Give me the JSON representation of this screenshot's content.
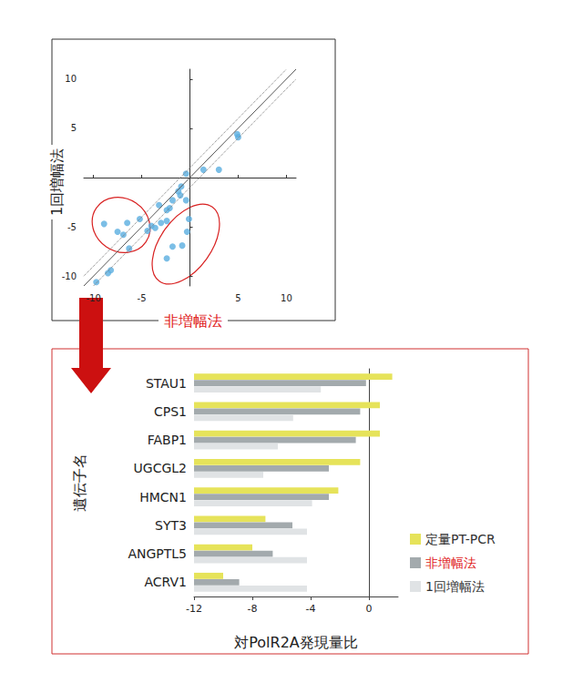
{
  "chart_data": [
    {
      "type": "scatter",
      "x_label": "非増幅法",
      "y_label": "1回増幅法",
      "x": [
        4.9,
        5.0,
        3.0,
        1.4,
        -0.4,
        -0.9,
        -1.2,
        -0.4,
        -1.8,
        -1.0,
        -2.1,
        -2.4,
        -3.2,
        -3.0,
        -2.4,
        -3.6,
        -4.4,
        -4.0,
        -5.2,
        -6.5,
        -7.5,
        -6.9,
        -8.9,
        -6.3,
        -8.2,
        -8.5,
        -9.7,
        -0.1,
        -0.3,
        -1.8,
        -2.4,
        -0.8
      ],
      "values": [
        4.4,
        4.1,
        0.8,
        0.8,
        0.4,
        -0.9,
        -1.4,
        -2.3,
        -2.3,
        -1.8,
        -3.1,
        -3.3,
        -2.8,
        -4.6,
        -4.4,
        -5.1,
        -5.4,
        -4.9,
        -4.2,
        -4.6,
        -5.5,
        -5.8,
        -4.7,
        -7.2,
        -9.4,
        -9.7,
        -10.6,
        -4.2,
        -5.5,
        -7.0,
        -8.2,
        -6.9
      ],
      "color": "#5aaee0",
      "xlim": [
        -11,
        11
      ],
      "ylim": [
        -11,
        11
      ],
      "xticks": [
        -10,
        -5,
        5,
        10
      ],
      "yticks": [
        -10,
        -5,
        5,
        10
      ],
      "diagonal_offset": 1,
      "grid": false
    },
    {
      "type": "bar",
      "orientation": "horizontal",
      "x_label": "対PolR2A発現量比",
      "y_label": "遺伝子名",
      "categories": [
        "STAU1",
        "CPS1",
        "FABP1",
        "UGCGL2",
        "HMCN1",
        "SYT3",
        "ANGPTL5",
        "ACRV1"
      ],
      "series": [
        {
          "name": "定量PT-PCR",
          "color": "#e6e35a",
          "values": [
            1.6,
            0.75,
            0.75,
            -0.6,
            -2.1,
            -7.1,
            -8.0,
            -10.0
          ]
        },
        {
          "name": "非増幅法",
          "color": "#a3aaad",
          "values": [
            -0.2,
            -0.6,
            -0.9,
            -2.75,
            -2.75,
            -5.25,
            -6.6,
            -8.9
          ]
        },
        {
          "name": "1回増幅法",
          "color": "#e0e3e5",
          "values": [
            -3.3,
            -5.2,
            -6.25,
            -7.25,
            -3.9,
            -4.25,
            -4.25,
            -4.25
          ]
        }
      ],
      "xlim": [
        -12,
        2
      ],
      "xticks": [
        -12,
        -8,
        -4,
        0
      ],
      "grid": false,
      "legend": "right"
    }
  ]
}
